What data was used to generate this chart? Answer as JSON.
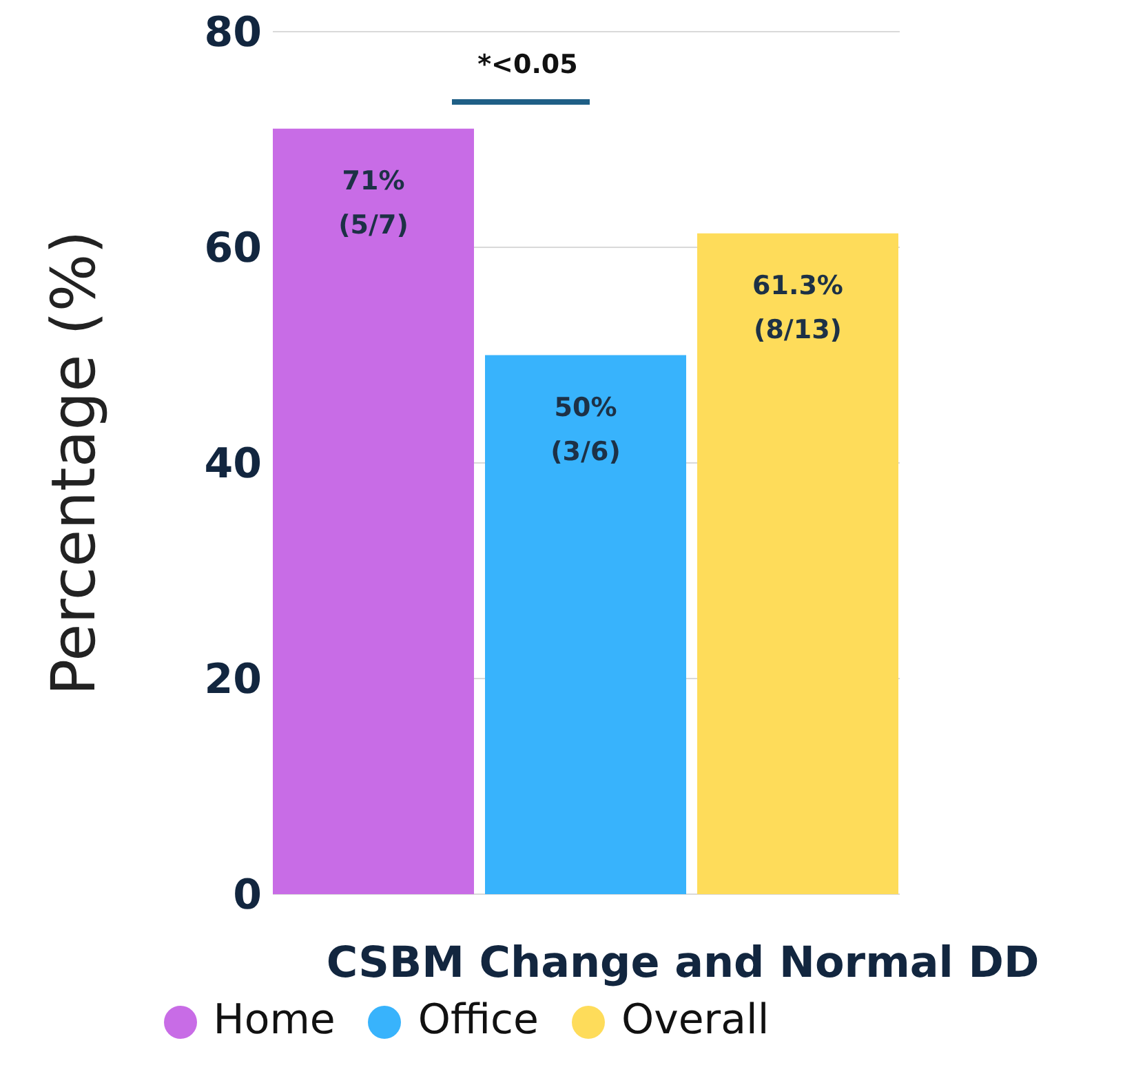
{
  "chart_data": {
    "type": "bar",
    "xlabel": "CSBM Change and Normal DD",
    "ylabel": "Percentage (%)",
    "categories": [
      null
    ],
    "series": [
      {
        "name": "Home",
        "color": "#c86ce6",
        "values": [
          71
        ],
        "value_labels": [
          "71% (5/7)"
        ]
      },
      {
        "name": "Office",
        "color": "#38b3fc",
        "values": [
          50
        ],
        "value_labels": [
          "50% (3/6)"
        ]
      },
      {
        "name": "Overall",
        "color": "#fedc5a",
        "values": [
          61.3
        ],
        "value_labels": [
          "61.3% (8/13)"
        ]
      }
    ],
    "ylim": [
      0,
      80
    ],
    "yticks": [
      0,
      20,
      40,
      60,
      80
    ],
    "grid": "y",
    "legend": "bottom",
    "annotations": [
      "*<0.05"
    ]
  }
}
